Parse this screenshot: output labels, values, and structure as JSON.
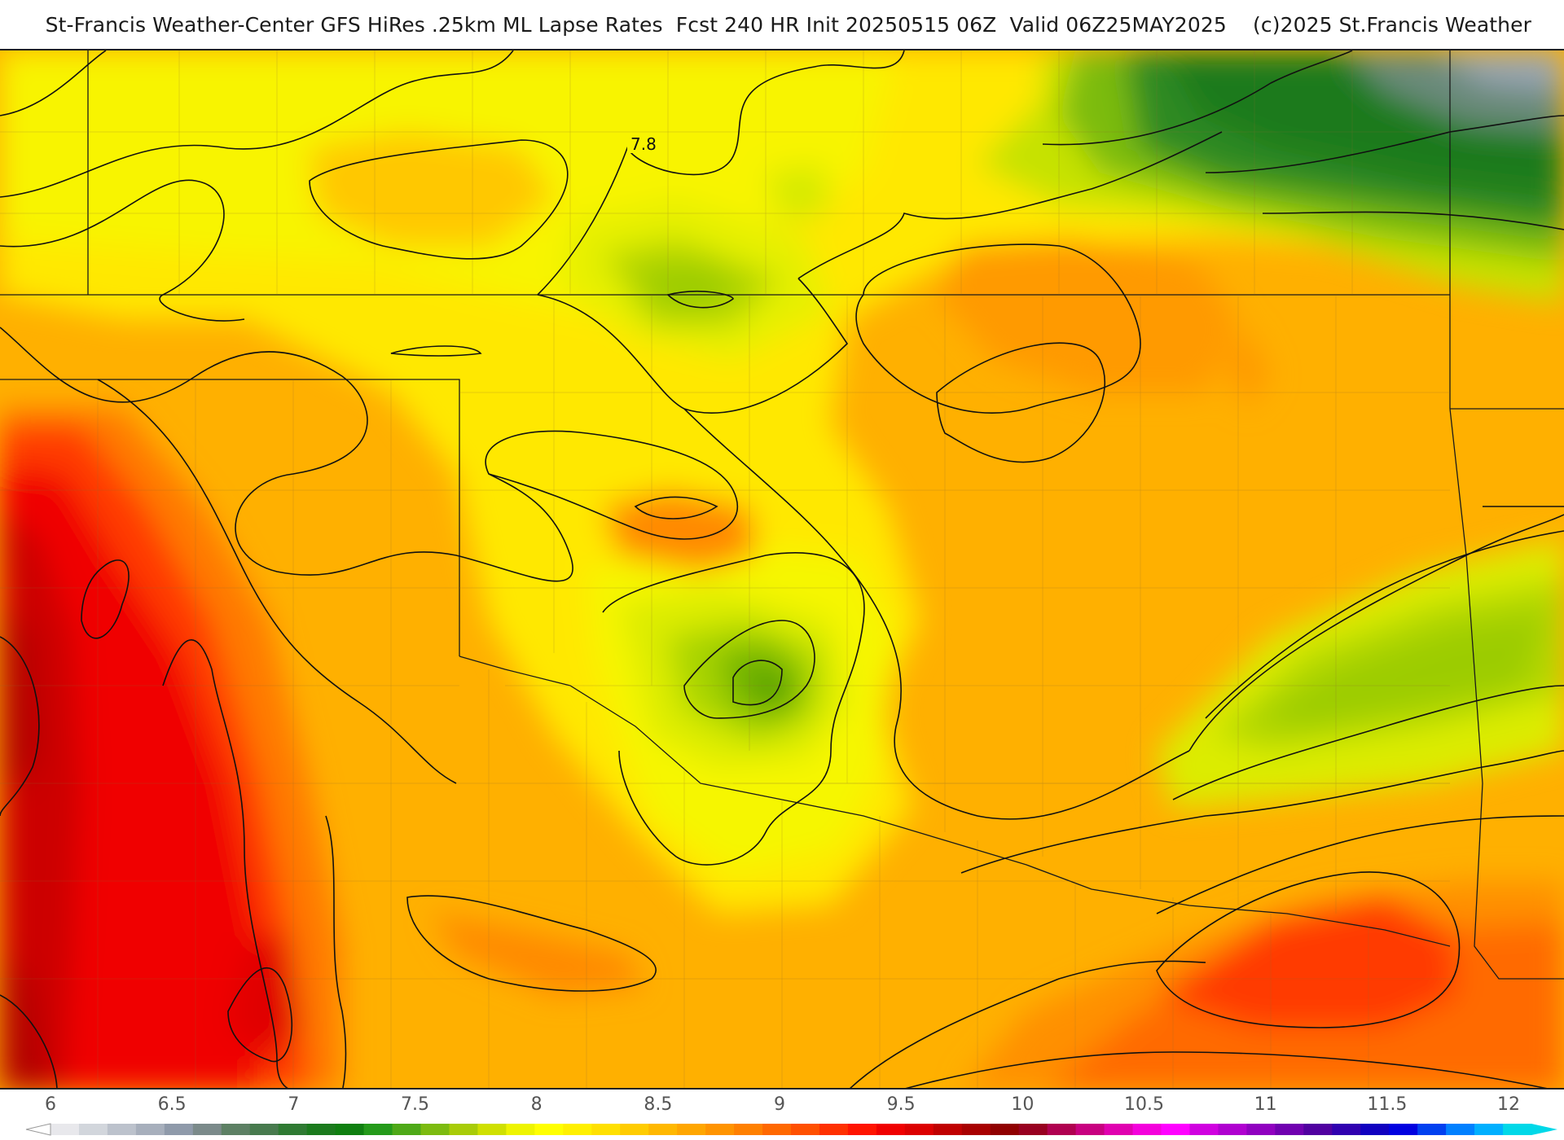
{
  "title": "St-Francis Weather-Center GFS HiRes .25km ML Lapse Rates  Fcst 240 HR Init 20250515 06Z  Valid 06Z25MAY2025    (c)2025 St.Francis Weather",
  "contour_label": "7.8",
  "legend": {
    "ticks": [
      "6",
      "6.5",
      "7",
      "7.5",
      "8",
      "8.5",
      "9",
      "9.5",
      "10",
      "10.5",
      "11",
      "11.5",
      "12"
    ],
    "colors": [
      "#e8e8ec",
      "#d2d6dc",
      "#bcc2cc",
      "#a7afbc",
      "#8f9aaa",
      "#7b8a8a",
      "#5d8064",
      "#487a4e",
      "#2f7a33",
      "#1b7a1d",
      "#0f7f10",
      "#249a1a",
      "#4ea918",
      "#7cbb10",
      "#a8cc08",
      "#cfe000",
      "#eef400",
      "#ffff00",
      "#fff000",
      "#ffe000",
      "#ffcc00",
      "#ffb800",
      "#ffa600",
      "#ff9400",
      "#ff8000",
      "#ff6800",
      "#ff5000",
      "#ff3000",
      "#ff1400",
      "#f00000",
      "#dc0000",
      "#c00000",
      "#a80000",
      "#900000",
      "#980020",
      "#b00050",
      "#c80080",
      "#e000b0",
      "#f400dc",
      "#ff00ff",
      "#d000e0",
      "#b000d0",
      "#9000c0",
      "#7000b0",
      "#5000a0",
      "#3000b0",
      "#1000c0",
      "#0000e0",
      "#0040f0",
      "#0080ff",
      "#00b0ff",
      "#00d8e8"
    ],
    "arrow_color_left": "#ffffff",
    "arrow_color_right": "#00d8e8"
  }
}
